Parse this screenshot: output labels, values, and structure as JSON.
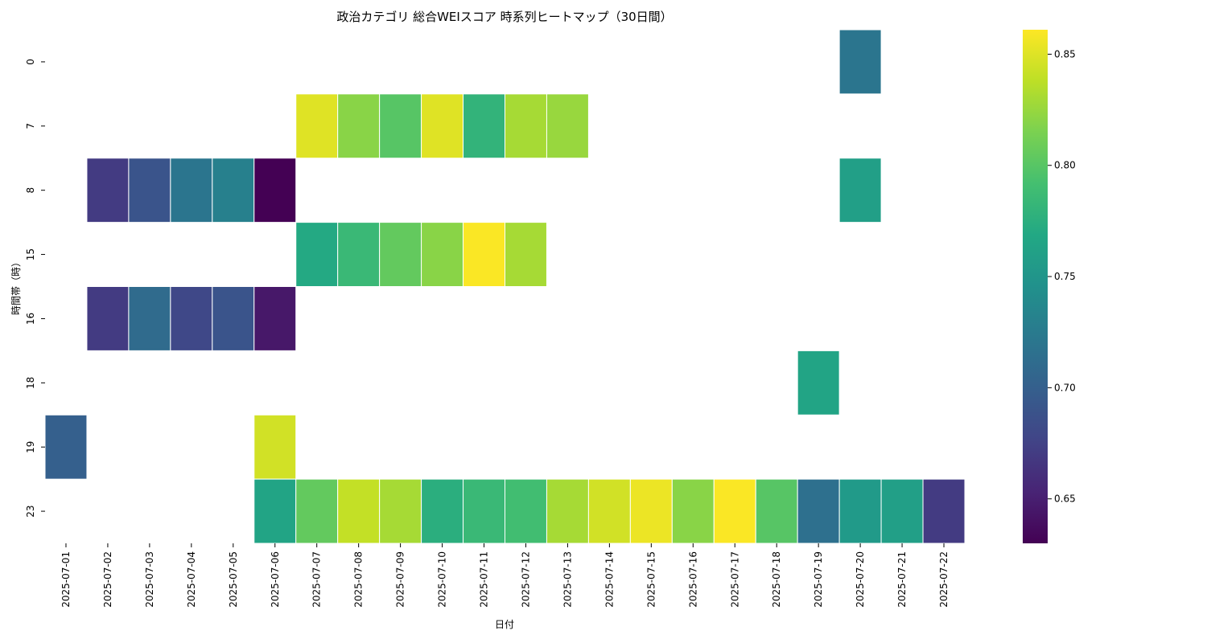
{
  "chart_data": {
    "type": "heatmap",
    "title": "政治カテゴリ 総合WEIスコア 時系列ヒートマップ（30日間）",
    "xlabel": "日付",
    "ylabel": "時間帯（時）",
    "x": [
      "2025-07-01",
      "2025-07-02",
      "2025-07-03",
      "2025-07-04",
      "2025-07-05",
      "2025-07-06",
      "2025-07-07",
      "2025-07-08",
      "2025-07-09",
      "2025-07-10",
      "2025-07-11",
      "2025-07-12",
      "2025-07-13",
      "2025-07-14",
      "2025-07-15",
      "2025-07-16",
      "2025-07-17",
      "2025-07-18",
      "2025-07-19",
      "2025-07-20",
      "2025-07-21",
      "2025-07-22"
    ],
    "y": [
      "0",
      "7",
      "8",
      "15",
      "16",
      "18",
      "19",
      "23"
    ],
    "values": [
      [
        null,
        null,
        null,
        null,
        null,
        null,
        null,
        null,
        null,
        null,
        null,
        null,
        null,
        null,
        null,
        null,
        null,
        null,
        null,
        0.72,
        null,
        null
      ],
      [
        null,
        null,
        null,
        null,
        null,
        null,
        0.85,
        0.82,
        0.8,
        0.85,
        0.78,
        0.83,
        0.825,
        null,
        null,
        null,
        null,
        null,
        null,
        null,
        null,
        null
      ],
      [
        null,
        0.67,
        0.69,
        0.72,
        0.73,
        0.63,
        null,
        null,
        null,
        null,
        null,
        null,
        null,
        null,
        null,
        null,
        null,
        null,
        null,
        0.76,
        null,
        null
      ],
      [
        null,
        null,
        null,
        null,
        null,
        null,
        0.77,
        0.785,
        0.805,
        0.82,
        0.86,
        0.83,
        null,
        null,
        null,
        null,
        null,
        null,
        null,
        null,
        null,
        null
      ],
      [
        null,
        0.67,
        0.71,
        0.68,
        0.69,
        0.645,
        null,
        null,
        null,
        null,
        null,
        null,
        null,
        null,
        null,
        null,
        null,
        null,
        null,
        null,
        null,
        null
      ],
      [
        null,
        null,
        null,
        null,
        null,
        null,
        null,
        null,
        null,
        null,
        null,
        null,
        null,
        null,
        null,
        null,
        null,
        null,
        0.765,
        null,
        null,
        null
      ],
      [
        0.7,
        null,
        null,
        null,
        null,
        0.845,
        null,
        null,
        null,
        null,
        null,
        null,
        null,
        null,
        null,
        null,
        null,
        null,
        null,
        null,
        null,
        null
      ],
      [
        null,
        null,
        null,
        null,
        null,
        0.765,
        0.805,
        0.84,
        0.83,
        0.775,
        0.785,
        0.79,
        0.83,
        0.845,
        0.855,
        0.82,
        0.86,
        0.8,
        0.715,
        0.755,
        0.76,
        0.67
      ]
    ],
    "colormap": "viridis",
    "vmin": 0.63,
    "vmax": 0.861,
    "colorbar_ticks": [
      0.65,
      0.7,
      0.75,
      0.8,
      0.85
    ],
    "colorbar_tick_labels": [
      "0.65",
      "0.70",
      "0.75",
      "0.80",
      "0.85"
    ],
    "grid": false,
    "cell_border_color": "#ffffff"
  }
}
